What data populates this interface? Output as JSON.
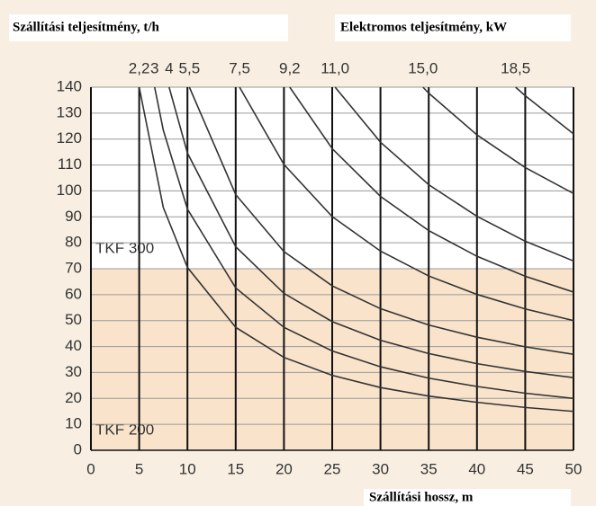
{
  "chart_data": {
    "type": "line",
    "title": "Szállítási teljesítmény, t/h",
    "subtitle": "Elektromos teljesítmény, kW",
    "x_label": "Szállítási hossz, m",
    "xlim": [
      0,
      50
    ],
    "ylim": [
      0,
      140
    ],
    "xticks": [
      0,
      5,
      10,
      15,
      20,
      25,
      30,
      35,
      40,
      45,
      50
    ],
    "yticks": [
      0,
      10,
      20,
      30,
      40,
      50,
      60,
      70,
      80,
      90,
      100,
      110,
      120,
      130,
      140
    ],
    "grid": true,
    "regions": [
      {
        "label": "TKF 300",
        "range": [
          70,
          140
        ],
        "color": "#ffffff"
      },
      {
        "label": "TKF 200",
        "range": [
          0,
          70
        ],
        "color": "#f9e3cb"
      }
    ],
    "series": [
      {
        "name": "2,2",
        "color": "#333333",
        "x": [
          5,
          7.5,
          10,
          15,
          20,
          25,
          30,
          35,
          40,
          45,
          50
        ],
        "values": [
          140,
          93.6,
          70.5,
          47.4,
          35.8,
          28.9,
          24.2,
          20.9,
          18.5,
          16.5,
          15
        ]
      },
      {
        "name": "3",
        "color": "#333333",
        "x": [
          6.6,
          7.5,
          10,
          15,
          20,
          25,
          30,
          35,
          40,
          45,
          50
        ],
        "values": [
          140,
          123.4,
          93,
          62.6,
          47.4,
          38.3,
          32.2,
          27.8,
          24.6,
          22,
          20
        ]
      },
      {
        "name": "4",
        "color": "#333333",
        "x": [
          8.1,
          10,
          15,
          20,
          25,
          30,
          35,
          40,
          45,
          50
        ],
        "values": [
          140,
          114.6,
          78.5,
          60.5,
          49.6,
          42.4,
          37.3,
          33.4,
          30.4,
          28
        ]
      },
      {
        "name": "5,5",
        "color": "#333333",
        "x": [
          10.2,
          15,
          20,
          25,
          30,
          35,
          40,
          45,
          50
        ],
        "values": [
          140,
          98.6,
          76.6,
          63.4,
          54.6,
          48.3,
          43.6,
          39.9,
          37
        ]
      },
      {
        "name": "7,5",
        "color": "#333333",
        "x": [
          15.4,
          20,
          25,
          30,
          35,
          40,
          45,
          50
        ],
        "values": [
          140,
          110.2,
          90.1,
          76.8,
          67.2,
          60.1,
          54.5,
          50
        ]
      },
      {
        "name": "9,2",
        "color": "#333333",
        "x": [
          20.6,
          25,
          30,
          35,
          40,
          45,
          50
        ],
        "values": [
          140,
          116.3,
          97.9,
          84.7,
          74.8,
          67.1,
          61
        ]
      },
      {
        "name": "11,0",
        "color": "#333333",
        "x": [
          25.3,
          30,
          35,
          40,
          45,
          50
        ],
        "values": [
          140,
          118.8,
          102.4,
          90.2,
          80.6,
          73
        ]
      },
      {
        "name": "15,0",
        "color": "#333333",
        "x": [
          34.4,
          35,
          40,
          45,
          50
        ],
        "values": [
          140,
          137.7,
          121.6,
          109,
          99
        ]
      },
      {
        "name": "18,5",
        "color": "#333333",
        "x": [
          44,
          45,
          50
        ],
        "values": [
          140,
          136.7,
          122
        ]
      }
    ]
  }
}
